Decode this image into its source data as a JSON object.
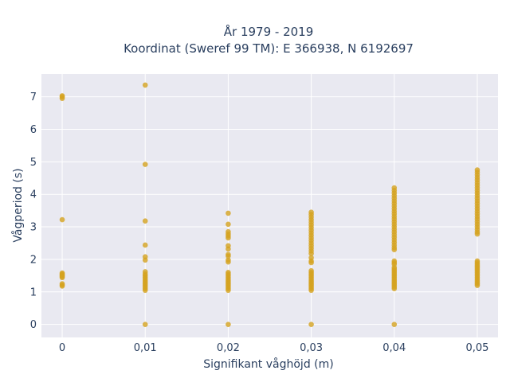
{
  "chart_data": {
    "type": "scatter",
    "title": [
      "År 1979 - 2019",
      "Koordinat (Sweref 99 TM): E 366938, N 6192697"
    ],
    "xlabel": "Signifikant våghöjd (m)",
    "ylabel": "Vågperiod (s)",
    "x_ticks": [
      0,
      0.01,
      0.02,
      0.03,
      0.04,
      0.05
    ],
    "x_tick_labels": [
      "0",
      "0,01",
      "0,02",
      "0,03",
      "0,04",
      "0,05"
    ],
    "y_ticks": [
      0,
      1,
      2,
      3,
      4,
      5,
      6,
      7
    ],
    "y_tick_labels": [
      "0",
      "1",
      "2",
      "3",
      "4",
      "5",
      "6",
      "7"
    ],
    "xlim": [
      -0.0025,
      0.0525
    ],
    "ylim": [
      -0.4,
      7.7
    ],
    "grid": true,
    "marker_color": "#D4A21F",
    "plot_bg": "#E9E9F1",
    "series": [
      {
        "points": [
          [
            0,
            7.03
          ],
          [
            0,
            7.0
          ],
          [
            0,
            6.95
          ],
          [
            0,
            3.22
          ],
          [
            0,
            1.58
          ],
          [
            0,
            1.55
          ],
          [
            0,
            1.52
          ],
          [
            0,
            1.5
          ],
          [
            0,
            1.47
          ],
          [
            0,
            1.44
          ],
          [
            0,
            1.25
          ],
          [
            0,
            1.21
          ],
          [
            0,
            1.18
          ],
          [
            0.01,
            7.36
          ],
          [
            0.01,
            4.92
          ],
          [
            0.01,
            3.18
          ],
          [
            0.01,
            2.44
          ],
          [
            0.01,
            2.08
          ],
          [
            0.01,
            1.98
          ],
          [
            0.01,
            1.62
          ],
          [
            0.01,
            1.55
          ],
          [
            0.01,
            1.5
          ],
          [
            0.01,
            1.45
          ],
          [
            0.01,
            1.4
          ],
          [
            0.01,
            1.35
          ],
          [
            0.01,
            1.3
          ],
          [
            0.01,
            1.25
          ],
          [
            0.01,
            1.2
          ],
          [
            0.01,
            1.15
          ],
          [
            0.01,
            1.1
          ],
          [
            0.01,
            1.05
          ],
          [
            0.01,
            0.0
          ],
          [
            0.02,
            3.42
          ],
          [
            0.02,
            3.08
          ],
          [
            0.02,
            2.85
          ],
          [
            0.02,
            2.78
          ],
          [
            0.02,
            2.72
          ],
          [
            0.02,
            2.66
          ],
          [
            0.02,
            2.42
          ],
          [
            0.02,
            2.32
          ],
          [
            0.02,
            2.15
          ],
          [
            0.02,
            2.1
          ],
          [
            0.02,
            1.98
          ],
          [
            0.02,
            1.92
          ],
          [
            0.02,
            1.6
          ],
          [
            0.02,
            1.55
          ],
          [
            0.02,
            1.5
          ],
          [
            0.02,
            1.45
          ],
          [
            0.02,
            1.4
          ],
          [
            0.02,
            1.35
          ],
          [
            0.02,
            1.3
          ],
          [
            0.02,
            1.25
          ],
          [
            0.02,
            1.2
          ],
          [
            0.02,
            1.15
          ],
          [
            0.02,
            1.1
          ],
          [
            0.02,
            1.05
          ],
          [
            0.02,
            0.0
          ],
          [
            0.03,
            3.45
          ],
          [
            0.03,
            3.38
          ],
          [
            0.03,
            3.3
          ],
          [
            0.03,
            3.22
          ],
          [
            0.03,
            3.14
          ],
          [
            0.03,
            3.06
          ],
          [
            0.03,
            2.98
          ],
          [
            0.03,
            2.9
          ],
          [
            0.03,
            2.82
          ],
          [
            0.03,
            2.74
          ],
          [
            0.03,
            2.66
          ],
          [
            0.03,
            2.58
          ],
          [
            0.03,
            2.5
          ],
          [
            0.03,
            2.42
          ],
          [
            0.03,
            2.34
          ],
          [
            0.03,
            2.26
          ],
          [
            0.03,
            2.18
          ],
          [
            0.03,
            2.05
          ],
          [
            0.03,
            1.95
          ],
          [
            0.03,
            1.9
          ],
          [
            0.03,
            1.65
          ],
          [
            0.03,
            1.6
          ],
          [
            0.03,
            1.55
          ],
          [
            0.03,
            1.5
          ],
          [
            0.03,
            1.45
          ],
          [
            0.03,
            1.4
          ],
          [
            0.03,
            1.35
          ],
          [
            0.03,
            1.3
          ],
          [
            0.03,
            1.25
          ],
          [
            0.03,
            1.2
          ],
          [
            0.03,
            1.15
          ],
          [
            0.03,
            1.1
          ],
          [
            0.03,
            1.05
          ],
          [
            0.03,
            0.0
          ],
          [
            0.04,
            4.2
          ],
          [
            0.04,
            4.12
          ],
          [
            0.04,
            4.04
          ],
          [
            0.04,
            3.96
          ],
          [
            0.04,
            3.88
          ],
          [
            0.04,
            3.8
          ],
          [
            0.04,
            3.72
          ],
          [
            0.04,
            3.64
          ],
          [
            0.04,
            3.56
          ],
          [
            0.04,
            3.48
          ],
          [
            0.04,
            3.4
          ],
          [
            0.04,
            3.32
          ],
          [
            0.04,
            3.24
          ],
          [
            0.04,
            3.16
          ],
          [
            0.04,
            3.08
          ],
          [
            0.04,
            3.0
          ],
          [
            0.04,
            2.92
          ],
          [
            0.04,
            2.84
          ],
          [
            0.04,
            2.76
          ],
          [
            0.04,
            2.68
          ],
          [
            0.04,
            2.6
          ],
          [
            0.04,
            2.52
          ],
          [
            0.04,
            2.44
          ],
          [
            0.04,
            2.36
          ],
          [
            0.04,
            2.3
          ],
          [
            0.04,
            1.95
          ],
          [
            0.04,
            1.9
          ],
          [
            0.04,
            1.85
          ],
          [
            0.04,
            1.75
          ],
          [
            0.04,
            1.7
          ],
          [
            0.04,
            1.65
          ],
          [
            0.04,
            1.6
          ],
          [
            0.04,
            1.55
          ],
          [
            0.04,
            1.5
          ],
          [
            0.04,
            1.45
          ],
          [
            0.04,
            1.4
          ],
          [
            0.04,
            1.35
          ],
          [
            0.04,
            1.3
          ],
          [
            0.04,
            1.25
          ],
          [
            0.04,
            1.2
          ],
          [
            0.04,
            1.15
          ],
          [
            0.04,
            1.1
          ],
          [
            0.04,
            0.0
          ],
          [
            0.05,
            4.75
          ],
          [
            0.05,
            4.68
          ],
          [
            0.05,
            4.6
          ],
          [
            0.05,
            4.52
          ],
          [
            0.05,
            4.44
          ],
          [
            0.05,
            4.36
          ],
          [
            0.05,
            4.28
          ],
          [
            0.05,
            4.2
          ],
          [
            0.05,
            4.12
          ],
          [
            0.05,
            4.04
          ],
          [
            0.05,
            3.96
          ],
          [
            0.05,
            3.88
          ],
          [
            0.05,
            3.8
          ],
          [
            0.05,
            3.72
          ],
          [
            0.05,
            3.64
          ],
          [
            0.05,
            3.56
          ],
          [
            0.05,
            3.48
          ],
          [
            0.05,
            3.4
          ],
          [
            0.05,
            3.32
          ],
          [
            0.05,
            3.24
          ],
          [
            0.05,
            3.16
          ],
          [
            0.05,
            3.08
          ],
          [
            0.05,
            3.0
          ],
          [
            0.05,
            2.92
          ],
          [
            0.05,
            2.84
          ],
          [
            0.05,
            2.78
          ],
          [
            0.05,
            1.95
          ],
          [
            0.05,
            1.9
          ],
          [
            0.05,
            1.85
          ],
          [
            0.05,
            1.8
          ],
          [
            0.05,
            1.75
          ],
          [
            0.05,
            1.7
          ],
          [
            0.05,
            1.65
          ],
          [
            0.05,
            1.6
          ],
          [
            0.05,
            1.55
          ],
          [
            0.05,
            1.5
          ],
          [
            0.05,
            1.45
          ],
          [
            0.05,
            1.4
          ],
          [
            0.05,
            1.35
          ],
          [
            0.05,
            1.3
          ],
          [
            0.05,
            1.25
          ],
          [
            0.05,
            1.2
          ]
        ]
      }
    ]
  }
}
